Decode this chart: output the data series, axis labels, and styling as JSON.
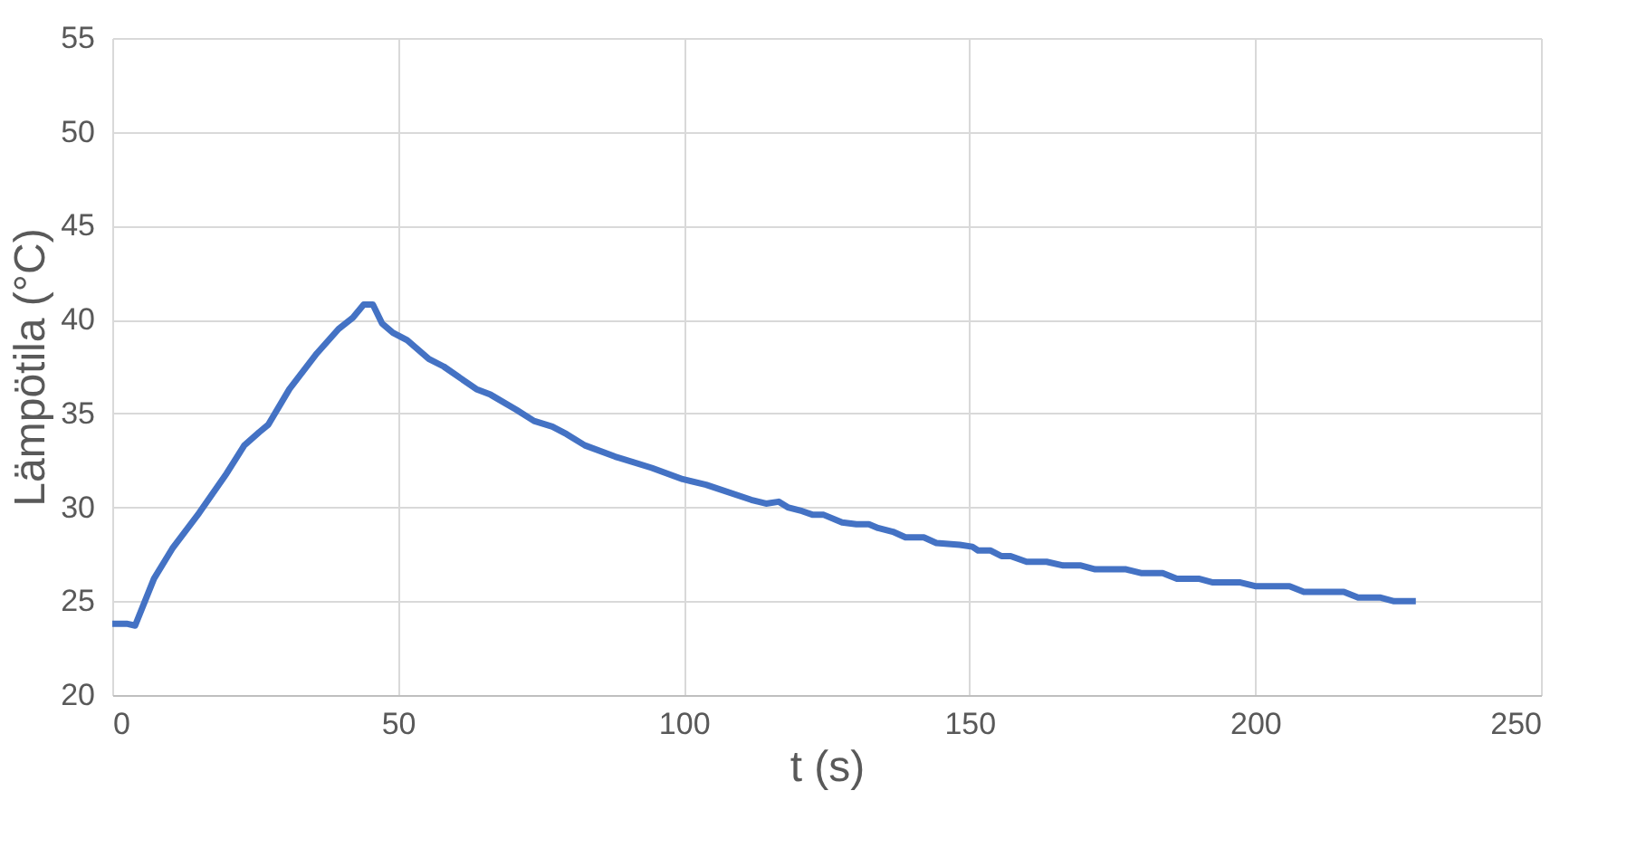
{
  "chart_data": {
    "type": "line",
    "xlabel": "t (s)",
    "ylabel": "Lämpötila (°C)",
    "xlim": [
      0,
      250
    ],
    "ylim": [
      20,
      55
    ],
    "xticks": [
      0,
      50,
      100,
      150,
      200,
      250
    ],
    "yticks": [
      20,
      25,
      30,
      35,
      40,
      45,
      50,
      55
    ],
    "grid": true,
    "legend": false,
    "marker": "none",
    "line_style": "solid",
    "series": [
      {
        "color": "#4472c4",
        "x": [
          0,
          2.5,
          4,
          7.3,
          10.5,
          15.2,
          20,
          23.1,
          25.7,
          27.3,
          31,
          35.8,
          39.6,
          42.1,
          44,
          45.6,
          47.2,
          49.1,
          51.6,
          55.4,
          58,
          63.7,
          66.2,
          70.7,
          73.8,
          77,
          79.5,
          82.7,
          88,
          94.4,
          99.8,
          103.9,
          111.8,
          114.4,
          116.6,
          118.2,
          120.7,
          122.6,
          124.5,
          127.7,
          130.2,
          132.4,
          134,
          136.6,
          138.8,
          142,
          144.2,
          148.3,
          150.5,
          151.5,
          153.7,
          155.6,
          157.2,
          160,
          163.5,
          166.4,
          169.5,
          172,
          177.4,
          180,
          183.8,
          186.3,
          190.1,
          192.6,
          197.4,
          200,
          206,
          208.5,
          215.5,
          218,
          221.8,
          224.3,
          228.1
        ],
        "values": [
          23.8,
          23.8,
          23.7,
          26.2,
          27.8,
          29.7,
          31.8,
          33.3,
          34.0,
          34.4,
          36.3,
          38.2,
          39.5,
          40.1,
          40.8,
          40.8,
          39.8,
          39.3,
          38.9,
          37.9,
          37.5,
          36.3,
          36.0,
          35.2,
          34.6,
          34.3,
          33.9,
          33.3,
          32.7,
          32.1,
          31.5,
          31.2,
          30.4,
          30.2,
          30.3,
          30.0,
          29.8,
          29.6,
          29.6,
          29.2,
          29.1,
          29.1,
          28.9,
          28.7,
          28.4,
          28.4,
          28.1,
          28.0,
          27.9,
          27.7,
          27.7,
          27.4,
          27.4,
          27.1,
          27.1,
          26.9,
          26.9,
          26.7,
          26.7,
          26.5,
          26.5,
          26.2,
          26.2,
          26.0,
          26.0,
          25.8,
          25.8,
          25.5,
          25.5,
          25.2,
          25.2,
          25.0,
          25.0
        ]
      }
    ]
  }
}
